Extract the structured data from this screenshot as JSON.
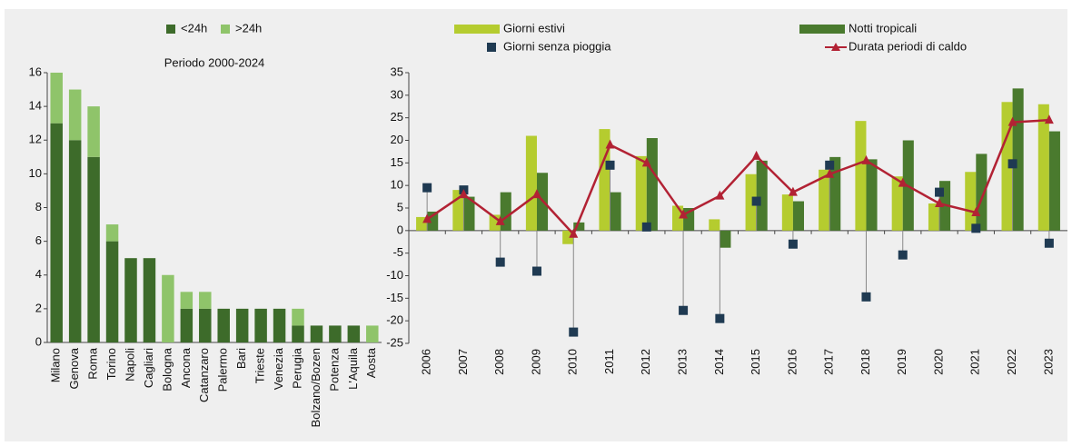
{
  "chart_data": [
    {
      "type": "bar",
      "stacked": true,
      "title": "Periodo 2000-2024",
      "legend": "top",
      "categories": [
        "Milano",
        "Genova",
        "Roma",
        "Torino",
        "Napoli",
        "Cagliari",
        "Bologna",
        "Ancona",
        "Catanzaro",
        "Palermo",
        "Bari",
        "Trieste",
        "Venezia",
        "Perugia",
        "Bolzano/Bozen",
        "Potenza",
        "L'Aquila",
        "Aosta"
      ],
      "series": [
        {
          "name": "<24h",
          "color": "#3d6b2a",
          "values": [
            13,
            12,
            11,
            6,
            5,
            5,
            0,
            2,
            2,
            2,
            2,
            2,
            2,
            1,
            1,
            1,
            1,
            0
          ]
        },
        {
          "name": ">24h",
          "color": "#8fc46a",
          "values": [
            3,
            3,
            3,
            1,
            0,
            0,
            4,
            1,
            1,
            0,
            0,
            0,
            0,
            1,
            0,
            0,
            0,
            1
          ]
        }
      ],
      "ylim": [
        0,
        16
      ],
      "yticks": [
        0,
        2,
        4,
        6,
        8,
        10,
        12,
        14,
        16
      ]
    },
    {
      "type": "combo",
      "legend": "top",
      "categories": [
        "2006",
        "2007",
        "2008",
        "2009",
        "2010",
        "2011",
        "2012",
        "2013",
        "2014",
        "2015",
        "2016",
        "2017",
        "2018",
        "2019",
        "2020",
        "2021",
        "2022",
        "2023"
      ],
      "series": [
        {
          "name": "Giorni estivi",
          "type": "bar",
          "color": "#b5cc2f",
          "values": [
            3,
            9,
            3.5,
            21,
            -3,
            22.5,
            16.5,
            5.5,
            2.5,
            12.5,
            8,
            13.5,
            24.3,
            12,
            6,
            13,
            28.5,
            28
          ]
        },
        {
          "name": "Notti tropicali",
          "type": "bar",
          "color": "#4a7a2e",
          "values": [
            4.2,
            7.5,
            8.5,
            12.8,
            1.8,
            8.5,
            20.5,
            5,
            -3.8,
            15.5,
            6.5,
            16.3,
            15.8,
            20,
            11,
            17,
            31.5,
            22
          ]
        },
        {
          "name": "Giorni senza pioggia",
          "type": "scatter",
          "color": "#1f3a52",
          "values": [
            9.5,
            9,
            -7,
            -9,
            -22.5,
            14.5,
            0.8,
            -17.7,
            -19.5,
            6.5,
            -3,
            14.5,
            -14.7,
            -5.4,
            8.5,
            0.5,
            14.8,
            -2.8
          ]
        },
        {
          "name": "Durata periodi di caldo",
          "type": "line",
          "color": "#b22234",
          "values": [
            2.5,
            8,
            2,
            8,
            -0.8,
            19,
            15,
            3.5,
            7.7,
            16.5,
            8.5,
            12.5,
            15.5,
            10.5,
            6,
            4,
            24,
            24.5
          ]
        }
      ],
      "ylim": [
        -25,
        35
      ],
      "yticks": [
        -25,
        -20,
        -15,
        -10,
        -5,
        0,
        5,
        10,
        15,
        20,
        25,
        30,
        35
      ]
    }
  ]
}
